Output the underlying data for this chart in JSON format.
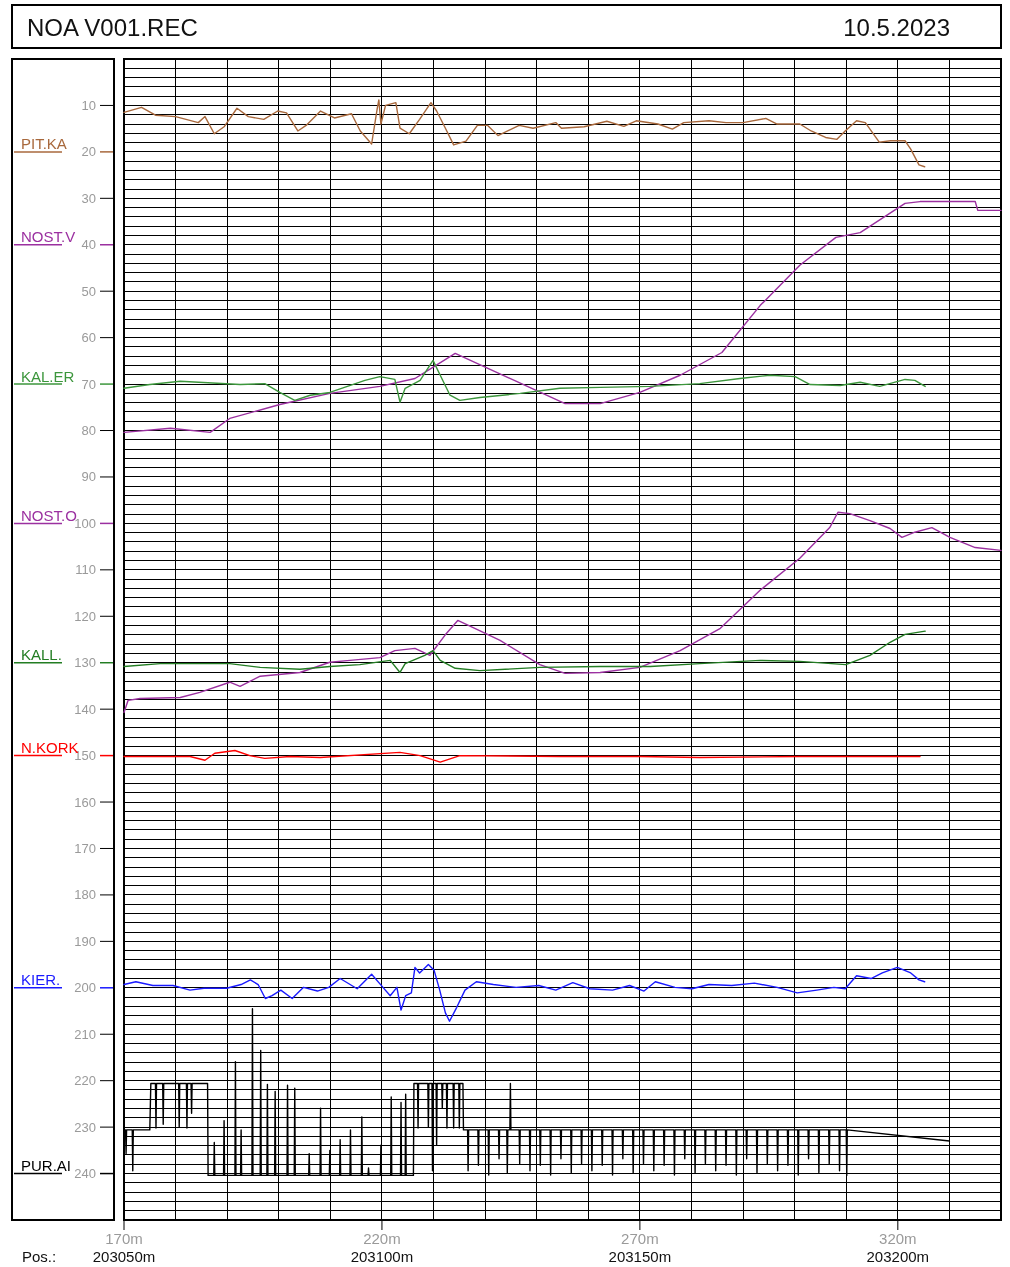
{
  "chart_data": {
    "type": "line",
    "title": "NOA V001.REC",
    "subtitle": "10.5.2023",
    "xlim": [
      170,
      340
    ],
    "xticks": [
      {
        "value": 170,
        "label": "170m"
      },
      {
        "value": 180,
        "label": null
      },
      {
        "value": 190,
        "label": null
      },
      {
        "value": 200,
        "label": null
      },
      {
        "value": 210,
        "label": null
      },
      {
        "value": 220,
        "label": "220m"
      },
      {
        "value": 230,
        "label": null
      },
      {
        "value": 240,
        "label": null
      },
      {
        "value": 250,
        "label": null
      },
      {
        "value": 260,
        "label": null
      },
      {
        "value": 270,
        "label": "270m"
      },
      {
        "value": 280,
        "label": null
      },
      {
        "value": 290,
        "label": null
      },
      {
        "value": 300,
        "label": null
      },
      {
        "value": 310,
        "label": null
      },
      {
        "value": 320,
        "label": "320m"
      },
      {
        "value": 330,
        "label": null
      }
    ],
    "x2lim": [
      203050,
      203220
    ],
    "x2ticks": [
      {
        "value": 203050,
        "label": "203050m"
      },
      {
        "value": 203100,
        "label": "203100m"
      },
      {
        "value": 203150,
        "label": "203150m"
      },
      {
        "value": 203200,
        "label": "203200m"
      }
    ],
    "x2label": "Pos.:",
    "ylim": [
      250,
      0
    ],
    "yticks": [
      {
        "value": 2,
        "label": null
      },
      {
        "value": 4,
        "label": null
      },
      {
        "value": 6,
        "label": null
      },
      {
        "value": 8,
        "label": null
      },
      10,
      {
        "value": 12,
        "label": null
      },
      {
        "value": 14,
        "label": null
      },
      {
        "value": 16,
        "label": null
      },
      {
        "value": 18,
        "label": null
      },
      20,
      {
        "value": 22,
        "label": null
      },
      {
        "value": 24,
        "label": null
      },
      {
        "value": 26,
        "label": null
      },
      {
        "value": 28,
        "label": null
      },
      30,
      {
        "value": 32,
        "label": null
      },
      {
        "value": 34,
        "label": null
      },
      {
        "value": 36,
        "label": null
      },
      {
        "value": 38,
        "label": null
      },
      40,
      {
        "value": 42,
        "label": null
      },
      {
        "value": 44,
        "label": null
      },
      {
        "value": 46,
        "label": null
      },
      {
        "value": 48,
        "label": null
      },
      50,
      {
        "value": 52,
        "label": null
      },
      {
        "value": 54,
        "label": null
      },
      {
        "value": 56,
        "label": null
      },
      {
        "value": 58,
        "label": null
      },
      60,
      {
        "value": 62,
        "label": null
      },
      {
        "value": 64,
        "label": null
      },
      {
        "value": 66,
        "label": null
      },
      {
        "value": 68,
        "label": null
      },
      70,
      {
        "value": 72,
        "label": null
      },
      {
        "value": 74,
        "label": null
      },
      {
        "value": 76,
        "label": null
      },
      {
        "value": 78,
        "label": null
      },
      80,
      {
        "value": 82,
        "label": null
      },
      {
        "value": 84,
        "label": null
      },
      {
        "value": 86,
        "label": null
      },
      {
        "value": 88,
        "label": null
      },
      90,
      {
        "value": 92,
        "label": null
      },
      {
        "value": 94,
        "label": null
      },
      {
        "value": 96,
        "label": null
      },
      {
        "value": 98,
        "label": null
      },
      100,
      {
        "value": 102,
        "label": null
      },
      {
        "value": 104,
        "label": null
      },
      {
        "value": 106,
        "label": null
      },
      {
        "value": 108,
        "label": null
      },
      110,
      {
        "value": 112,
        "label": null
      },
      {
        "value": 114,
        "label": null
      },
      {
        "value": 116,
        "label": null
      },
      {
        "value": 118,
        "label": null
      },
      120,
      {
        "value": 122,
        "label": null
      },
      {
        "value": 124,
        "label": null
      },
      {
        "value": 126,
        "label": null
      },
      {
        "value": 128,
        "label": null
      },
      130,
      {
        "value": 132,
        "label": null
      },
      {
        "value": 134,
        "label": null
      },
      {
        "value": 136,
        "label": null
      },
      {
        "value": 138,
        "label": null
      },
      140,
      {
        "value": 142,
        "label": null
      },
      {
        "value": 144,
        "label": null
      },
      {
        "value": 146,
        "label": null
      },
      {
        "value": 148,
        "label": null
      },
      150,
      {
        "value": 152,
        "label": null
      },
      {
        "value": 154,
        "label": null
      },
      {
        "value": 156,
        "label": null
      },
      {
        "value": 158,
        "label": null
      },
      160,
      {
        "value": 162,
        "label": null
      },
      {
        "value": 164,
        "label": null
      },
      {
        "value": 166,
        "label": null
      },
      {
        "value": 168,
        "label": null
      },
      170,
      {
        "value": 172,
        "label": null
      },
      {
        "value": 174,
        "label": null
      },
      {
        "value": 176,
        "label": null
      },
      {
        "value": 178,
        "label": null
      },
      180,
      {
        "value": 182,
        "label": null
      },
      {
        "value": 184,
        "label": null
      },
      {
        "value": 186,
        "label": null
      },
      {
        "value": 188,
        "label": null
      },
      190,
      {
        "value": 192,
        "label": null
      },
      {
        "value": 194,
        "label": null
      },
      {
        "value": 196,
        "label": null
      },
      {
        "value": 198,
        "label": null
      },
      200,
      {
        "value": 202,
        "label": null
      },
      {
        "value": 204,
        "label": null
      },
      {
        "value": 206,
        "label": null
      },
      {
        "value": 208,
        "label": null
      },
      210,
      {
        "value": 212,
        "label": null
      },
      {
        "value": 214,
        "label": null
      },
      {
        "value": 216,
        "label": null
      },
      {
        "value": 218,
        "label": null
      },
      220,
      {
        "value": 222,
        "label": null
      },
      {
        "value": 224,
        "label": null
      },
      {
        "value": 226,
        "label": null
      },
      {
        "value": 228,
        "label": null
      },
      230,
      {
        "value": 232,
        "label": null
      },
      {
        "value": 234,
        "label": null
      },
      {
        "value": 236,
        "label": null
      },
      {
        "value": 238,
        "label": null
      },
      240,
      {
        "value": 242,
        "label": null
      },
      {
        "value": 244,
        "label": null
      },
      {
        "value": 246,
        "label": null
      },
      {
        "value": 248,
        "label": null
      }
    ],
    "grid": true,
    "legend": "left",
    "series": [
      {
        "name": "PIT.KA",
        "color": "#a8683c",
        "x": [
          170,
          173.4,
          176.1,
          180,
          184.4,
          185.7,
          187.5,
          189.4,
          191.9,
          194.1,
          197.1,
          199.8,
          201.5,
          203.7,
          205.3,
          208.1,
          210.8,
          214.1,
          215.8,
          218,
          219.1,
          219.4,
          219.8,
          220.7,
          222.7,
          223.5,
          225.3,
          227.3,
          229.5,
          230.6,
          232.3,
          233.9,
          236.3,
          238.5,
          240.5,
          242.5,
          246.6,
          249.3,
          253.7,
          254.8,
          259.2,
          263.6,
          266.9,
          269.3,
          273.5,
          276.3,
          278.5,
          283.4,
          286.7,
          290,
          294.4,
          296.6,
          301,
          303.2,
          306,
          308.2,
          309.8,
          312,
          313.7,
          316.4,
          318.6,
          321.4,
          322.5,
          324.1,
          325.2
        ],
        "values": [
          11.5,
          10.4,
          12.1,
          12.4,
          13.7,
          12.4,
          16.1,
          14.6,
          10.6,
          12.4,
          13,
          11.2,
          11.6,
          15.5,
          14.3,
          11.2,
          12.7,
          11.8,
          15.5,
          18.3,
          10.6,
          8.8,
          14,
          10,
          9.4,
          14.9,
          16.1,
          13,
          9.4,
          11.2,
          14.9,
          18.5,
          17.7,
          14.3,
          14.3,
          16.5,
          14.3,
          14.9,
          13.7,
          14.9,
          14.6,
          13.4,
          14.5,
          13.3,
          14,
          15.1,
          13.7,
          13.3,
          13.7,
          13.7,
          12.8,
          14,
          14,
          15.5,
          16.9,
          17.3,
          15.5,
          13.3,
          13.7,
          17.9,
          17.6,
          17.6,
          19.4,
          22.8,
          23.2
        ]
      },
      {
        "name": "NOST.V",
        "color": "#9b30a0",
        "x": [
          170,
          179,
          186.7,
          190.5,
          200.2,
          209.9,
          219.6,
          226.4,
          229,
          234.2,
          255.5,
          262.3,
          270,
          277.8,
          285.9,
          293.3,
          301,
          308,
          312.7,
          321.4,
          324.3,
          335,
          335.5,
          340
        ],
        "values": [
          80.4,
          79.5,
          80.4,
          77.4,
          74.4,
          72,
          70.5,
          68.8,
          67,
          63.4,
          74.2,
          74.2,
          71.8,
          68.1,
          63.2,
          53.1,
          44.4,
          38.4,
          37.4,
          31.1,
          30.7,
          30.7,
          32.6,
          32.6
        ]
      },
      {
        "name": "KAL.ER",
        "color": "#3c963c",
        "x": [
          170,
          175,
          180.9,
          192.5,
          197.3,
          200.2,
          203.1,
          206.1,
          209.9,
          216.7,
          219.6,
          222.5,
          223.5,
          224.5,
          227.4,
          229.9,
          231.3,
          233.2,
          235.1,
          239,
          246.8,
          254.5,
          262.3,
          272,
          281.6,
          289.4,
          295.2,
          300.1,
          303,
          308.8,
          312.7,
          316.5,
          321.4,
          323.3,
          325.3
        ],
        "values": [
          70.9,
          70.1,
          69.4,
          70.1,
          69.9,
          71.8,
          73.5,
          72.4,
          71.8,
          69.2,
          68.4,
          69,
          73.9,
          70.9,
          69.2,
          64.9,
          68.1,
          72.4,
          73.5,
          72.9,
          72,
          70.9,
          70.7,
          70.5,
          69.9,
          68.8,
          68.1,
          68.4,
          70.1,
          70.3,
          69.6,
          70.5,
          69,
          69.2,
          70.5
        ]
      },
      {
        "name": "NOST.O",
        "color": "#9b30a0",
        "x": [
          170,
          170.8,
          173.1,
          180.9,
          184.7,
          190.5,
          192.5,
          196.4,
          204.1,
          209.9,
          213.8,
          219.6,
          222.5,
          226.4,
          229.3,
          232.2,
          234.7,
          238,
          242.9,
          250.6,
          255.5,
          262.3,
          270,
          277.8,
          285.6,
          293.3,
          301,
          306.8,
          308.4,
          310.7,
          314.6,
          318.5,
          320.8,
          323.3,
          326.6,
          330.1,
          335,
          340
        ],
        "values": [
          140.7,
          138.1,
          137.7,
          137.5,
          136.4,
          134.2,
          135.1,
          132.9,
          132.1,
          129.9,
          129.5,
          128.9,
          127.4,
          126.9,
          128.4,
          124.1,
          120.9,
          122.6,
          125.2,
          130.4,
          132.3,
          132.1,
          131,
          127.4,
          122.6,
          114.4,
          107.5,
          100.9,
          97.6,
          97.9,
          99.4,
          101.1,
          103,
          101.9,
          100.9,
          103,
          105.2,
          105.8
        ]
      },
      {
        "name": "KALL.",
        "color": "#237d23",
        "x": [
          170,
          177,
          190.5,
          196.4,
          204.1,
          209.9,
          215.7,
          221.6,
          223.5,
          224.5,
          228.3,
          229.9,
          231.3,
          234.2,
          239,
          250.6,
          262.3,
          272,
          281.6,
          293.3,
          301,
          309.9,
          314.6,
          318.5,
          321.4,
          325.3
        ],
        "values": [
          130.8,
          130.2,
          130.2,
          131,
          131.4,
          130.8,
          130.4,
          129.5,
          132.1,
          130.2,
          128.4,
          127.4,
          129.5,
          131.2,
          131.7,
          131,
          130.8,
          130.8,
          130.2,
          129.5,
          129.7,
          130.4,
          128.4,
          125.6,
          123.9,
          123.2
        ]
      },
      {
        "name": "N.KORK",
        "color": "#ff0000",
        "x": [
          170,
          182.8,
          185.7,
          187.6,
          191.5,
          194.4,
          197.3,
          202.2,
          208,
          223.5,
          227.4,
          231.3,
          235.1,
          254.5,
          270,
          281.6,
          301,
          324.3
        ],
        "values": [
          150.2,
          150.2,
          151,
          149.5,
          148.9,
          150,
          150.6,
          150.2,
          150.4,
          149.3,
          150,
          151.4,
          150,
          150.2,
          150.2,
          150.4,
          150.2,
          150.2
        ]
      },
      {
        "name": "KIER.",
        "color": "#1a1aff",
        "x": [
          170,
          172.3,
          175.6,
          179.5,
          182.8,
          185.5,
          189.9,
          192.7,
          194.5,
          196,
          197.4,
          198.7,
          200.4,
          202.6,
          204.8,
          207.5,
          209.7,
          211.9,
          215.2,
          218,
          220.2,
          221.6,
          222.9,
          223.7,
          224.6,
          225.7,
          226.4,
          227.3,
          229,
          230.1,
          231.2,
          232.3,
          233.1,
          234.5,
          236.1,
          238.3,
          241.6,
          246,
          250.4,
          253.7,
          257,
          260.3,
          264.7,
          268,
          270.8,
          273,
          276.8,
          280.1,
          283.4,
          287.8,
          292.2,
          296.6,
          300.5,
          304.3,
          307.6,
          309.8,
          312,
          314.8,
          317,
          319.9,
          322.5,
          324.1,
          325.2
        ],
        "values": [
          199.3,
          198.7,
          199.5,
          199.5,
          200.5,
          200.1,
          200.1,
          199.3,
          198.3,
          199.3,
          202.3,
          201.7,
          200.5,
          202.3,
          199.9,
          200.7,
          199.9,
          198,
          200.2,
          197.1,
          199.9,
          201.7,
          199.9,
          204.8,
          201.7,
          201.1,
          195.6,
          196.8,
          195,
          196.2,
          200.5,
          205.4,
          207.2,
          204.2,
          200.5,
          198.7,
          199.3,
          199.9,
          199.5,
          200.5,
          198.9,
          200.2,
          200.5,
          199.5,
          200.7,
          198.7,
          199.9,
          200.2,
          199.3,
          199.5,
          199,
          199.9,
          201.1,
          200.5,
          199.9,
          200.2,
          197.4,
          198,
          196.8,
          195.6,
          196.8,
          198.3,
          198.7
        ]
      },
      {
        "name": "PUR.AI",
        "color": "#000000",
        "x": [
          170,
          170.3,
          170.4,
          170.5,
          171.6,
          171.7,
          171.8,
          175,
          175.2,
          176.1,
          176.2,
          176.3,
          177.5,
          177.6,
          177.7,
          180.6,
          180.7,
          180.8,
          182.1,
          182.2,
          182.3,
          183,
          183.1,
          183.2,
          186.2,
          186.3,
          187.4,
          187.5,
          187.6,
          189.3,
          189.4,
          189.5,
          191.5,
          191.6,
          191.7,
          192.6,
          192.7,
          192.8,
          194.8,
          194.9,
          195,
          196.4,
          196.5,
          196.6,
          197.7,
          197.8,
          197.9,
          199.2,
          199.3,
          199.4,
          201.6,
          201.7,
          201.8,
          203,
          203.1,
          203.2,
          205.8,
          205.9,
          206,
          208,
          208.1,
          208.2,
          209.8,
          209.9,
          210,
          211.8,
          211.9,
          212,
          213.8,
          213.9,
          214,
          216,
          216.1,
          216.2,
          217.3,
          217.4,
          217.5,
          219.7,
          219.8,
          219.9,
          221.7,
          221.8,
          221.9,
          223.6,
          223.7,
          223.8,
          224.5,
          224.6,
          224.7,
          226.1,
          226.2,
          226.9,
          227,
          227.1,
          228.9,
          229,
          229.1,
          229.7,
          229.8,
          229.9,
          230.5,
          230.6,
          230.7,
          231.6,
          231.7,
          231.8,
          232.5,
          232.6,
          232.7,
          233.8,
          233.9,
          234,
          234.9,
          235,
          235.1,
          235.7,
          235.8,
          236.6,
          236.7,
          236.8,
          238.6,
          238.7,
          238.8,
          240.6,
          240.7,
          240.8,
          242.6,
          242.7,
          242.8,
          244.2,
          244.3,
          244.4,
          244.8,
          244.9,
          245,
          246.6,
          246.7,
          246.8,
          248.6,
          248.7,
          248.8,
          250.6,
          250.7,
          250.8,
          252.6,
          252.7,
          252.8,
          254.6,
          254.7,
          254.8,
          256.6,
          256.7,
          256.8,
          258.6,
          258.7,
          258.8,
          260.6,
          260.7,
          260.8,
          262.6,
          262.7,
          262.8,
          264.6,
          264.7,
          264.8,
          266.6,
          266.7,
          266.8,
          268.6,
          268.7,
          268.8,
          270.6,
          270.7,
          270.8,
          272.6,
          272.7,
          272.8,
          274.6,
          274.7,
          274.8,
          276.6,
          276.7,
          276.8,
          278.6,
          278.7,
          278.8,
          280.6,
          280.7,
          280.8,
          282.6,
          282.7,
          282.8,
          284.6,
          284.7,
          284.8,
          286.6,
          286.7,
          286.8,
          288.6,
          288.7,
          288.8,
          290.6,
          290.7,
          290.8,
          292.6,
          292.7,
          292.8,
          294.6,
          294.7,
          294.8,
          296.6,
          296.7,
          296.8,
          298.6,
          298.7,
          298.8,
          300.6,
          300.7,
          300.8,
          302.6,
          302.7,
          302.8,
          304.6,
          304.7,
          304.8,
          306.6,
          306.7,
          306.8,
          308.6,
          308.7,
          308.8,
          310,
          310.1,
          310.2,
          330
        ],
        "values": [
          230.6,
          230.6,
          235.7,
          230.6,
          230.6,
          239.4,
          230.6,
          230.6,
          220.6,
          220.6,
          230.2,
          220.6,
          220.6,
          229.4,
          220.6,
          220.6,
          229.9,
          220.6,
          220.6,
          230.2,
          220.6,
          220.6,
          227,
          220.6,
          220.6,
          240.4,
          240.4,
          233.3,
          240.4,
          240.4,
          228.6,
          240.4,
          240.4,
          215.9,
          240.4,
          240.4,
          230.6,
          240.4,
          240.4,
          204.5,
          240.4,
          240.4,
          213.5,
          240.4,
          240.4,
          220.8,
          240.4,
          240.4,
          222.3,
          240.4,
          240.4,
          221,
          240.4,
          240.4,
          221.6,
          240.4,
          240.4,
          235.7,
          240.4,
          240.4,
          225.9,
          240.4,
          240.4,
          235,
          240.4,
          240.4,
          232.7,
          240.4,
          240.4,
          230.6,
          240.4,
          240.4,
          227.8,
          240.4,
          240.4,
          238.8,
          240.4,
          240.4,
          233.9,
          240.4,
          240.4,
          223.5,
          240.4,
          240.4,
          224.7,
          240.4,
          240.4,
          222.9,
          240.4,
          240.4,
          220.6,
          220.6,
          230.2,
          220.6,
          220.6,
          230,
          220.6,
          220.6,
          239.4,
          220.6,
          220.6,
          233.8,
          220.6,
          220.6,
          225.9,
          220.6,
          220.6,
          230.2,
          220.6,
          220.6,
          230.2,
          220.6,
          220.6,
          230.2,
          220.6,
          220.6,
          230.6,
          230.6,
          239.4,
          230.6,
          230.6,
          238.2,
          230.6,
          230.6,
          240.3,
          230.6,
          230.6,
          236.8,
          230.6,
          230.6,
          239.8,
          230.6,
          230.6,
          220.6,
          230.6,
          230.6,
          237.9,
          230.6,
          230.6,
          239.4,
          230.6,
          230.6,
          238.2,
          230.6,
          230.6,
          240.3,
          230.6,
          230.6,
          236.8,
          230.6,
          230.6,
          239.8,
          230.6,
          230.6,
          237.9,
          230.6,
          230.6,
          239.4,
          230.6,
          230.6,
          238.2,
          230.6,
          230.6,
          240.3,
          230.6,
          230.6,
          236.8,
          230.6,
          230.6,
          239.8,
          230.6,
          230.6,
          237.9,
          230.6,
          230.6,
          239.4,
          230.6,
          230.6,
          238.2,
          230.6,
          230.6,
          240.3,
          230.6,
          230.6,
          236.8,
          230.6,
          230.6,
          239.8,
          230.6,
          230.6,
          237.9,
          230.6,
          230.6,
          239.4,
          230.6,
          230.6,
          238.2,
          230.6,
          230.6,
          240.3,
          230.6,
          230.6,
          236.8,
          230.6,
          230.6,
          239.8,
          230.6,
          230.6,
          237.9,
          230.6,
          230.6,
          239.4,
          230.6,
          230.6,
          238.2,
          230.6,
          230.6,
          240.3,
          230.6,
          230.6,
          236.8,
          230.6,
          230.6,
          239.8,
          230.6,
          230.6,
          237.9,
          230.6,
          230.6,
          239.4,
          230.6,
          230.6,
          240.4,
          230.6,
          233
        ]
      }
    ]
  }
}
